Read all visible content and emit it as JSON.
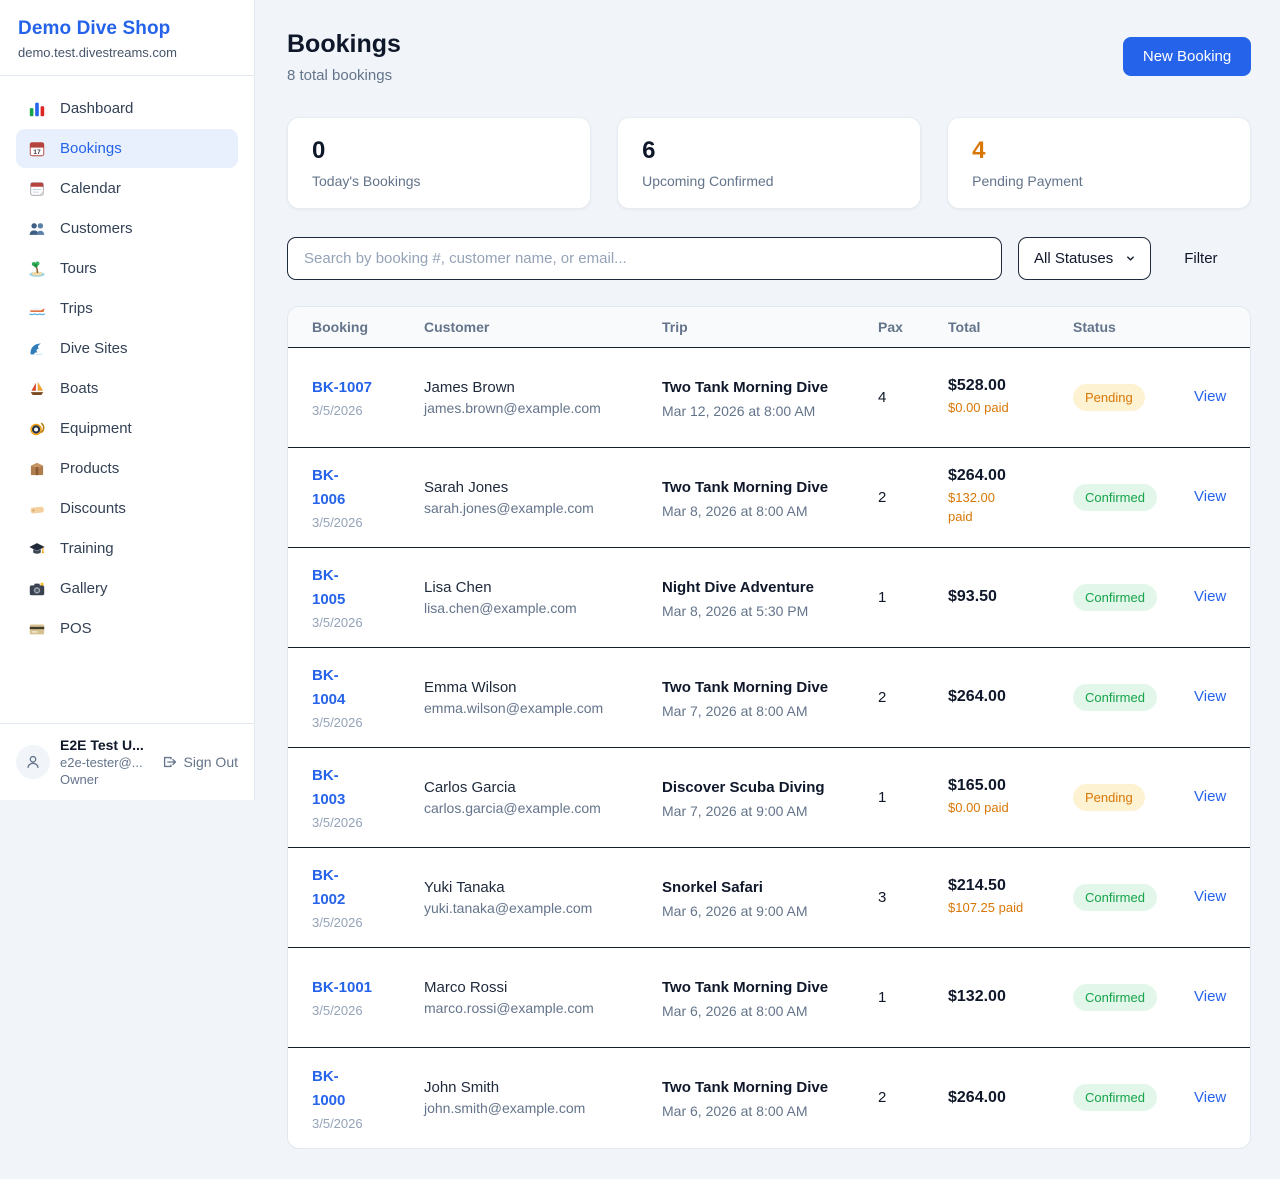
{
  "brand": {
    "name": "Demo Dive Shop",
    "domain": "demo.test.divestreams.com"
  },
  "sidebar": {
    "items": [
      {
        "icon": "dashboard",
        "label": "Dashboard",
        "active": false
      },
      {
        "icon": "bookings",
        "label": "Bookings",
        "active": true
      },
      {
        "icon": "calendar",
        "label": "Calendar",
        "active": false
      },
      {
        "icon": "customers",
        "label": "Customers",
        "active": false
      },
      {
        "icon": "tours",
        "label": "Tours",
        "active": false
      },
      {
        "icon": "trips",
        "label": "Trips",
        "active": false
      },
      {
        "icon": "dive-sites",
        "label": "Dive Sites",
        "active": false
      },
      {
        "icon": "boats",
        "label": "Boats",
        "active": false
      },
      {
        "icon": "equipment",
        "label": "Equipment",
        "active": false
      },
      {
        "icon": "products",
        "label": "Products",
        "active": false
      },
      {
        "icon": "discounts",
        "label": "Discounts",
        "active": false
      },
      {
        "icon": "training",
        "label": "Training",
        "active": false
      },
      {
        "icon": "gallery",
        "label": "Gallery",
        "active": false
      },
      {
        "icon": "pos",
        "label": "POS",
        "active": false
      }
    ]
  },
  "user": {
    "name": "E2E Test U...",
    "email": "e2e-tester@...",
    "role": "Owner",
    "sign_out": "Sign Out"
  },
  "header": {
    "title": "Bookings",
    "subtitle": "8 total bookings",
    "new_booking": "New Booking"
  },
  "stats": [
    {
      "value": "0",
      "label": "Today's Bookings"
    },
    {
      "value": "6",
      "label": "Upcoming Confirmed"
    },
    {
      "value": "4",
      "label": "Pending Payment"
    }
  ],
  "filters": {
    "search_placeholder": "Search by booking #, customer name, or email...",
    "status_selected": "All Statuses",
    "filter_label": "Filter"
  },
  "table": {
    "columns": [
      "Booking",
      "Customer",
      "Trip",
      "Pax",
      "Total",
      "Status",
      ""
    ],
    "rows": [
      {
        "id_display": "BK-1007",
        "date": "3/5/2026",
        "customer_name": "James Brown",
        "customer_email": "james.brown@example.com",
        "trip_name": "Two Tank Morning Dive",
        "trip_datetime": "Mar 12, 2026 at 8:00 AM",
        "pax": "4",
        "total": "$528.00",
        "paid": "$0.00 paid",
        "status": "Pending",
        "view": "View"
      },
      {
        "id_display": "BK-\n1006",
        "date": "3/5/2026",
        "customer_name": "Sarah Jones",
        "customer_email": "sarah.jones@example.com",
        "trip_name": "Two Tank Morning Dive",
        "trip_datetime": "Mar 8, 2026 at 8:00 AM",
        "pax": "2",
        "total": "$264.00",
        "paid": "$132.00\npaid",
        "status": "Confirmed",
        "view": "View"
      },
      {
        "id_display": "BK-\n1005",
        "date": "3/5/2026",
        "customer_name": "Lisa Chen",
        "customer_email": "lisa.chen@example.com",
        "trip_name": "Night Dive Adventure",
        "trip_datetime": "Mar 8, 2026 at 5:30 PM",
        "pax": "1",
        "total": "$93.50",
        "paid": "",
        "status": "Confirmed",
        "view": "View"
      },
      {
        "id_display": "BK-\n1004",
        "date": "3/5/2026",
        "customer_name": "Emma Wilson",
        "customer_email": "emma.wilson@example.com",
        "trip_name": "Two Tank Morning Dive",
        "trip_datetime": "Mar 7, 2026 at 8:00 AM",
        "pax": "2",
        "total": "$264.00",
        "paid": "",
        "status": "Confirmed",
        "view": "View"
      },
      {
        "id_display": "BK-\n1003",
        "date": "3/5/2026",
        "customer_name": "Carlos Garcia",
        "customer_email": "carlos.garcia@example.com",
        "trip_name": "Discover Scuba Diving",
        "trip_datetime": "Mar 7, 2026 at 9:00 AM",
        "pax": "1",
        "total": "$165.00",
        "paid": "$0.00 paid",
        "status": "Pending",
        "view": "View"
      },
      {
        "id_display": "BK-\n1002",
        "date": "3/5/2026",
        "customer_name": "Yuki Tanaka",
        "customer_email": "yuki.tanaka@example.com",
        "trip_name": "Snorkel Safari",
        "trip_datetime": "Mar 6, 2026 at 9:00 AM",
        "pax": "3",
        "total": "$214.50",
        "paid": "$107.25 paid",
        "status": "Confirmed",
        "view": "View"
      },
      {
        "id_display": "BK-1001",
        "date": "3/5/2026",
        "customer_name": "Marco Rossi",
        "customer_email": "marco.rossi@example.com",
        "trip_name": "Two Tank Morning Dive",
        "trip_datetime": "Mar 6, 2026 at 8:00 AM",
        "pax": "1",
        "total": "$132.00",
        "paid": "",
        "status": "Confirmed",
        "view": "View"
      },
      {
        "id_display": "BK-\n1000",
        "date": "3/5/2026",
        "customer_name": "John Smith",
        "customer_email": "john.smith@example.com",
        "trip_name": "Two Tank Morning Dive",
        "trip_datetime": "Mar 6, 2026 at 8:00 AM",
        "pax": "2",
        "total": "$264.00",
        "paid": "",
        "status": "Confirmed",
        "view": "View"
      }
    ]
  },
  "colors": {
    "accent": "#2563eb",
    "pending_text": "#d97706",
    "pending_bg": "#fdf2d2",
    "confirmed_text": "#16a34a",
    "confirmed_bg": "#e2f7e9"
  }
}
